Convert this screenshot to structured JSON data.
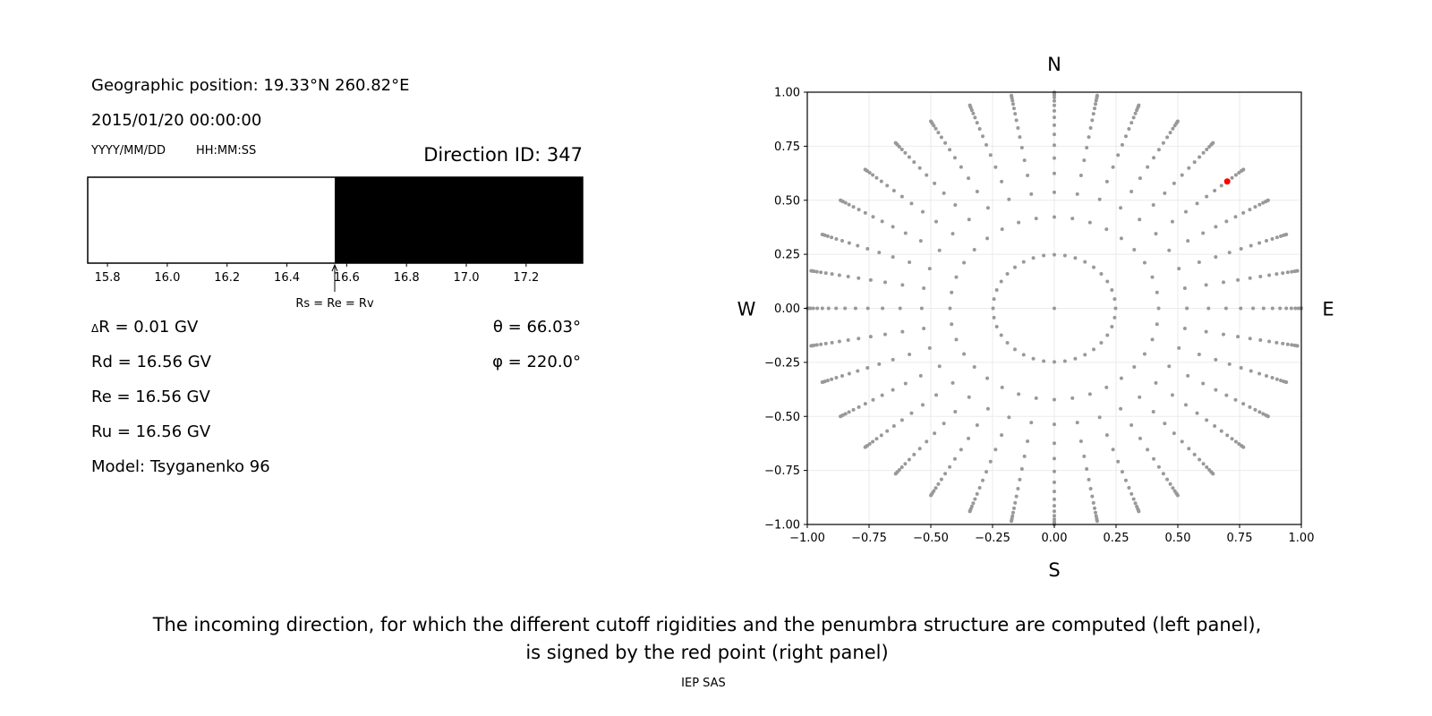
{
  "left_panel": {
    "geo_position": "Geographic position: 19.33°N 260.82°E",
    "datetime": "2015/01/20 00:00:00",
    "date_format": "YYYY/MM/DD",
    "time_format": "HH:MM:SS",
    "direction_id": "Direction ID: 347",
    "delta_r": "R = 0.01 GV",
    "delta_symbol": "Δ",
    "rd": "Rd = 16.56 GV",
    "re": "Re = 16.56 GV",
    "ru": "Ru = 16.56 GV",
    "model": "Model: Tsyganenko 96",
    "theta": "θ = 66.03°",
    "phi": "φ = 220.0°"
  },
  "caption_line1": "The incoming direction, for which the different cutoff rigidities and the penumbra structure are computed (left panel),",
  "caption_line2": "is signed by the red point (right panel)",
  "footer": "IEP SAS",
  "chart_data": [
    {
      "type": "bar",
      "description_label": "penumbra",
      "xlim": [
        15.734,
        17.389
      ],
      "xticks": [
        "15.8",
        "16.0",
        "16.2",
        "16.4",
        "16.6",
        "16.8",
        "17.0",
        "17.2"
      ],
      "segments": [
        {
          "from": 15.734,
          "to": 16.56,
          "color": "#ffffff"
        },
        {
          "from": 16.56,
          "to": 17.389,
          "color": "#000000"
        }
      ],
      "annotation": {
        "text": "Rs = Re = Rv",
        "x": 16.56
      }
    },
    {
      "type": "scatter",
      "xlim": [
        -1,
        1
      ],
      "ylim": [
        -1,
        1
      ],
      "grid": true,
      "xticks": [
        "−1.00",
        "−0.75",
        "−0.50",
        "−0.25",
        "0.00",
        "0.25",
        "0.50",
        "0.75",
        "1.00"
      ],
      "yticks": [
        "−1.00",
        "−0.75",
        "−0.50",
        "−0.25",
        "0.00",
        "0.25",
        "0.50",
        "0.75",
        "1.00"
      ],
      "compass": {
        "top": "N",
        "bottom": "S",
        "left": "W",
        "right": "E"
      },
      "grid_zenith_deg": [
        14.36,
        24.98,
        32.46,
        38.62,
        44.05,
        48.99,
        53.58,
        57.91,
        62.05,
        66.03,
        69.89,
        73.67,
        77.36,
        81.01,
        84.62,
        88.21
      ],
      "grid_azimuth_deg": [
        0,
        10,
        20,
        30,
        40,
        50,
        60,
        70,
        80,
        90,
        100,
        110,
        120,
        130,
        140,
        150,
        160,
        170,
        180,
        190,
        200,
        210,
        220,
        230,
        240,
        250,
        260,
        270,
        280,
        290,
        300,
        310,
        320,
        330,
        340,
        350
      ],
      "center_point": [
        0,
        0
      ],
      "point_color": "#999999",
      "highlight": {
        "theta_deg": 66.03,
        "phi_deg": 220.0,
        "x": 0.7,
        "y": 0.587,
        "color": "#ff0000"
      }
    }
  ]
}
